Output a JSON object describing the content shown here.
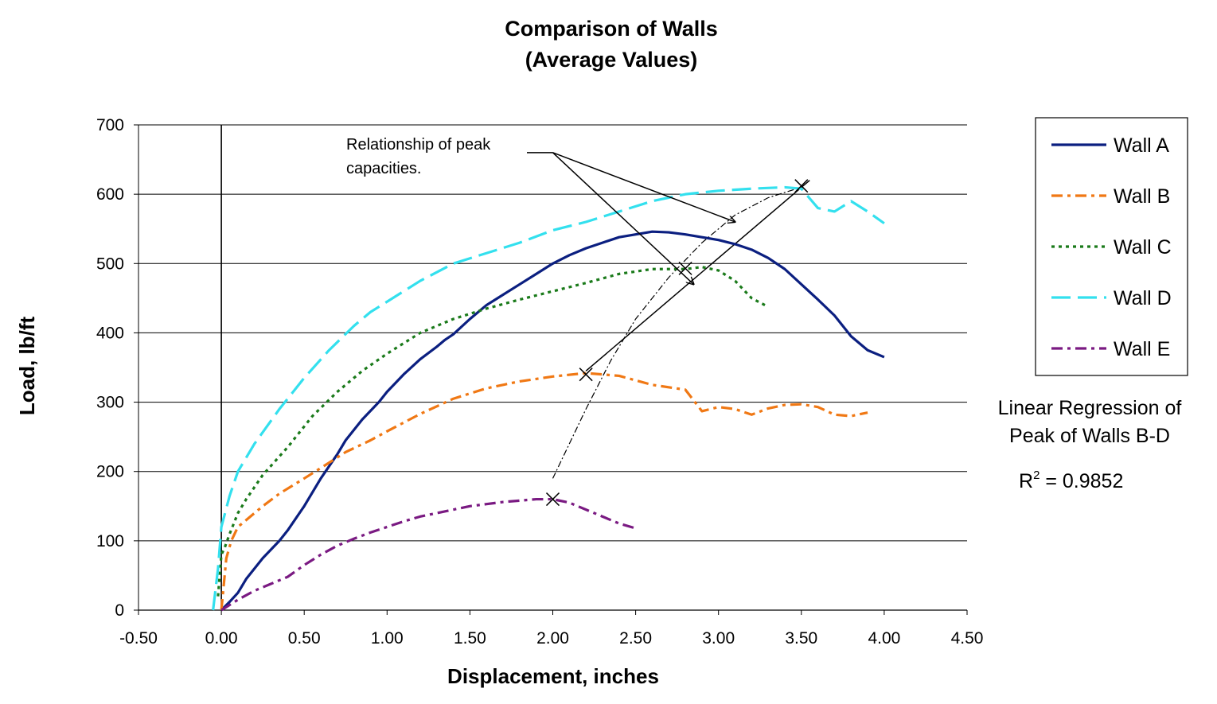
{
  "chart_data": {
    "type": "line",
    "title": "Comparison of Walls",
    "subtitle": "(Average Values)",
    "xlabel": "Displacement, inches",
    "ylabel": "Load, lb/ft",
    "xlim": [
      -0.5,
      4.5
    ],
    "ylim": [
      0,
      700
    ],
    "x_ticks": [
      "-0.50",
      "0.00",
      "0.50",
      "1.00",
      "1.50",
      "2.00",
      "2.50",
      "3.00",
      "3.50",
      "4.00",
      "4.50"
    ],
    "y_ticks": [
      "0",
      "100",
      "200",
      "300",
      "400",
      "500",
      "600",
      "700"
    ],
    "grid": "horizontal",
    "legend_position": "right",
    "series": [
      {
        "name": "Wall A",
        "color": "#0b1f80",
        "dash": "solid",
        "x": [
          0.0,
          0.05,
          0.1,
          0.15,
          0.25,
          0.35,
          0.4,
          0.5,
          0.6,
          0.7,
          0.75,
          0.85,
          0.95,
          1.0,
          1.1,
          1.2,
          1.3,
          1.35,
          1.4,
          1.5,
          1.6,
          1.7,
          1.8,
          1.9,
          2.0,
          2.1,
          2.2,
          2.3,
          2.4,
          2.5,
          2.6,
          2.7,
          2.8,
          2.9,
          3.0,
          3.1,
          3.2,
          3.3,
          3.4,
          3.5,
          3.6,
          3.7,
          3.8,
          3.9,
          4.0
        ],
        "y": [
          0,
          12,
          25,
          45,
          75,
          100,
          115,
          150,
          190,
          225,
          245,
          275,
          300,
          315,
          340,
          362,
          380,
          390,
          398,
          420,
          440,
          455,
          470,
          485,
          500,
          512,
          522,
          530,
          538,
          542,
          546,
          545,
          542,
          538,
          534,
          528,
          520,
          508,
          492,
          470,
          448,
          425,
          395,
          375,
          365
        ]
      },
      {
        "name": "Wall B",
        "color": "#f07814",
        "dash": "dashdot",
        "x": [
          0.0,
          0.03,
          0.06,
          0.1,
          0.15,
          0.25,
          0.35,
          0.5,
          0.6,
          0.75,
          0.9,
          1.0,
          1.2,
          1.4,
          1.6,
          1.8,
          2.0,
          2.2,
          2.4,
          2.6,
          2.8,
          2.9,
          3.0,
          3.1,
          3.2,
          3.3,
          3.4,
          3.5,
          3.6,
          3.7,
          3.8,
          3.9
        ],
        "y": [
          0,
          75,
          100,
          120,
          130,
          150,
          168,
          190,
          205,
          228,
          245,
          258,
          283,
          305,
          320,
          330,
          337,
          342,
          338,
          325,
          318,
          287,
          293,
          290,
          282,
          291,
          296,
          297,
          293,
          282,
          280,
          285
        ]
      },
      {
        "name": "Wall C",
        "color": "#1a7a1a",
        "dash": "dotted",
        "x": [
          -0.02,
          0.0,
          0.02,
          0.05,
          0.1,
          0.15,
          0.25,
          0.4,
          0.55,
          0.7,
          0.85,
          1.0,
          1.2,
          1.4,
          1.6,
          1.8,
          2.0,
          2.2,
          2.4,
          2.6,
          2.8,
          2.9,
          3.0,
          3.1,
          3.2,
          3.28
        ],
        "y": [
          20,
          80,
          90,
          110,
          140,
          160,
          195,
          235,
          280,
          315,
          345,
          370,
          400,
          420,
          435,
          448,
          460,
          472,
          485,
          492,
          492,
          495,
          490,
          475,
          450,
          440
        ]
      },
      {
        "name": "Wall D",
        "color": "#33e0ee",
        "dash": "longdash",
        "x": [
          -0.05,
          -0.02,
          0.0,
          0.05,
          0.1,
          0.2,
          0.35,
          0.5,
          0.65,
          0.8,
          0.9,
          1.0,
          1.2,
          1.4,
          1.6,
          1.8,
          2.0,
          2.2,
          2.4,
          2.6,
          2.8,
          3.0,
          3.2,
          3.4,
          3.5,
          3.6,
          3.7,
          3.8,
          3.9,
          4.0
        ],
        "y": [
          0,
          60,
          120,
          165,
          200,
          240,
          290,
          335,
          375,
          410,
          430,
          445,
          475,
          500,
          515,
          530,
          548,
          560,
          575,
          590,
          600,
          605,
          608,
          610,
          608,
          580,
          575,
          590,
          575,
          558
        ]
      },
      {
        "name": "Wall E",
        "color": "#7a1a82",
        "dash": "dashdot",
        "x": [
          0.0,
          0.1,
          0.2,
          0.3,
          0.4,
          0.5,
          0.6,
          0.7,
          0.8,
          0.9,
          1.0,
          1.1,
          1.2,
          1.3,
          1.4,
          1.5,
          1.6,
          1.7,
          1.8,
          1.9,
          2.0,
          2.1,
          2.2,
          2.3,
          2.4,
          2.5
        ],
        "y": [
          0,
          15,
          28,
          38,
          48,
          65,
          80,
          93,
          103,
          112,
          120,
          128,
          135,
          140,
          145,
          150,
          153,
          156,
          158,
          160,
          160,
          155,
          145,
          135,
          125,
          118
        ]
      }
    ],
    "peak_markers": [
      {
        "x": 2.2,
        "y": 340
      },
      {
        "x": 2.8,
        "y": 493
      },
      {
        "x": 3.5,
        "y": 612
      },
      {
        "x": 2.0,
        "y": 160
      }
    ],
    "regression_line": {
      "x": [
        2.2,
        3.55
      ],
      "y": [
        345,
        620
      ]
    },
    "dashed_trend": {
      "x": [
        2.0,
        2.1,
        2.2,
        2.35,
        2.5,
        2.7,
        2.9,
        3.1,
        3.3,
        3.5
      ],
      "y": [
        190,
        240,
        290,
        360,
        420,
        480,
        530,
        570,
        595,
        610
      ]
    },
    "annotation": {
      "lines": [
        "Relationship of peak",
        "capacities."
      ],
      "origin": {
        "x": 2.0,
        "y": 660
      },
      "targets": [
        {
          "x": 3.1,
          "y": 560
        },
        {
          "x": 2.85,
          "y": 470
        }
      ]
    },
    "side_note": {
      "lines": [
        "Linear Regression of",
        "Peak of Walls B-D"
      ],
      "r2_label": "R",
      "r2_exp": "2",
      "r2_value": " = 0.9852"
    }
  }
}
